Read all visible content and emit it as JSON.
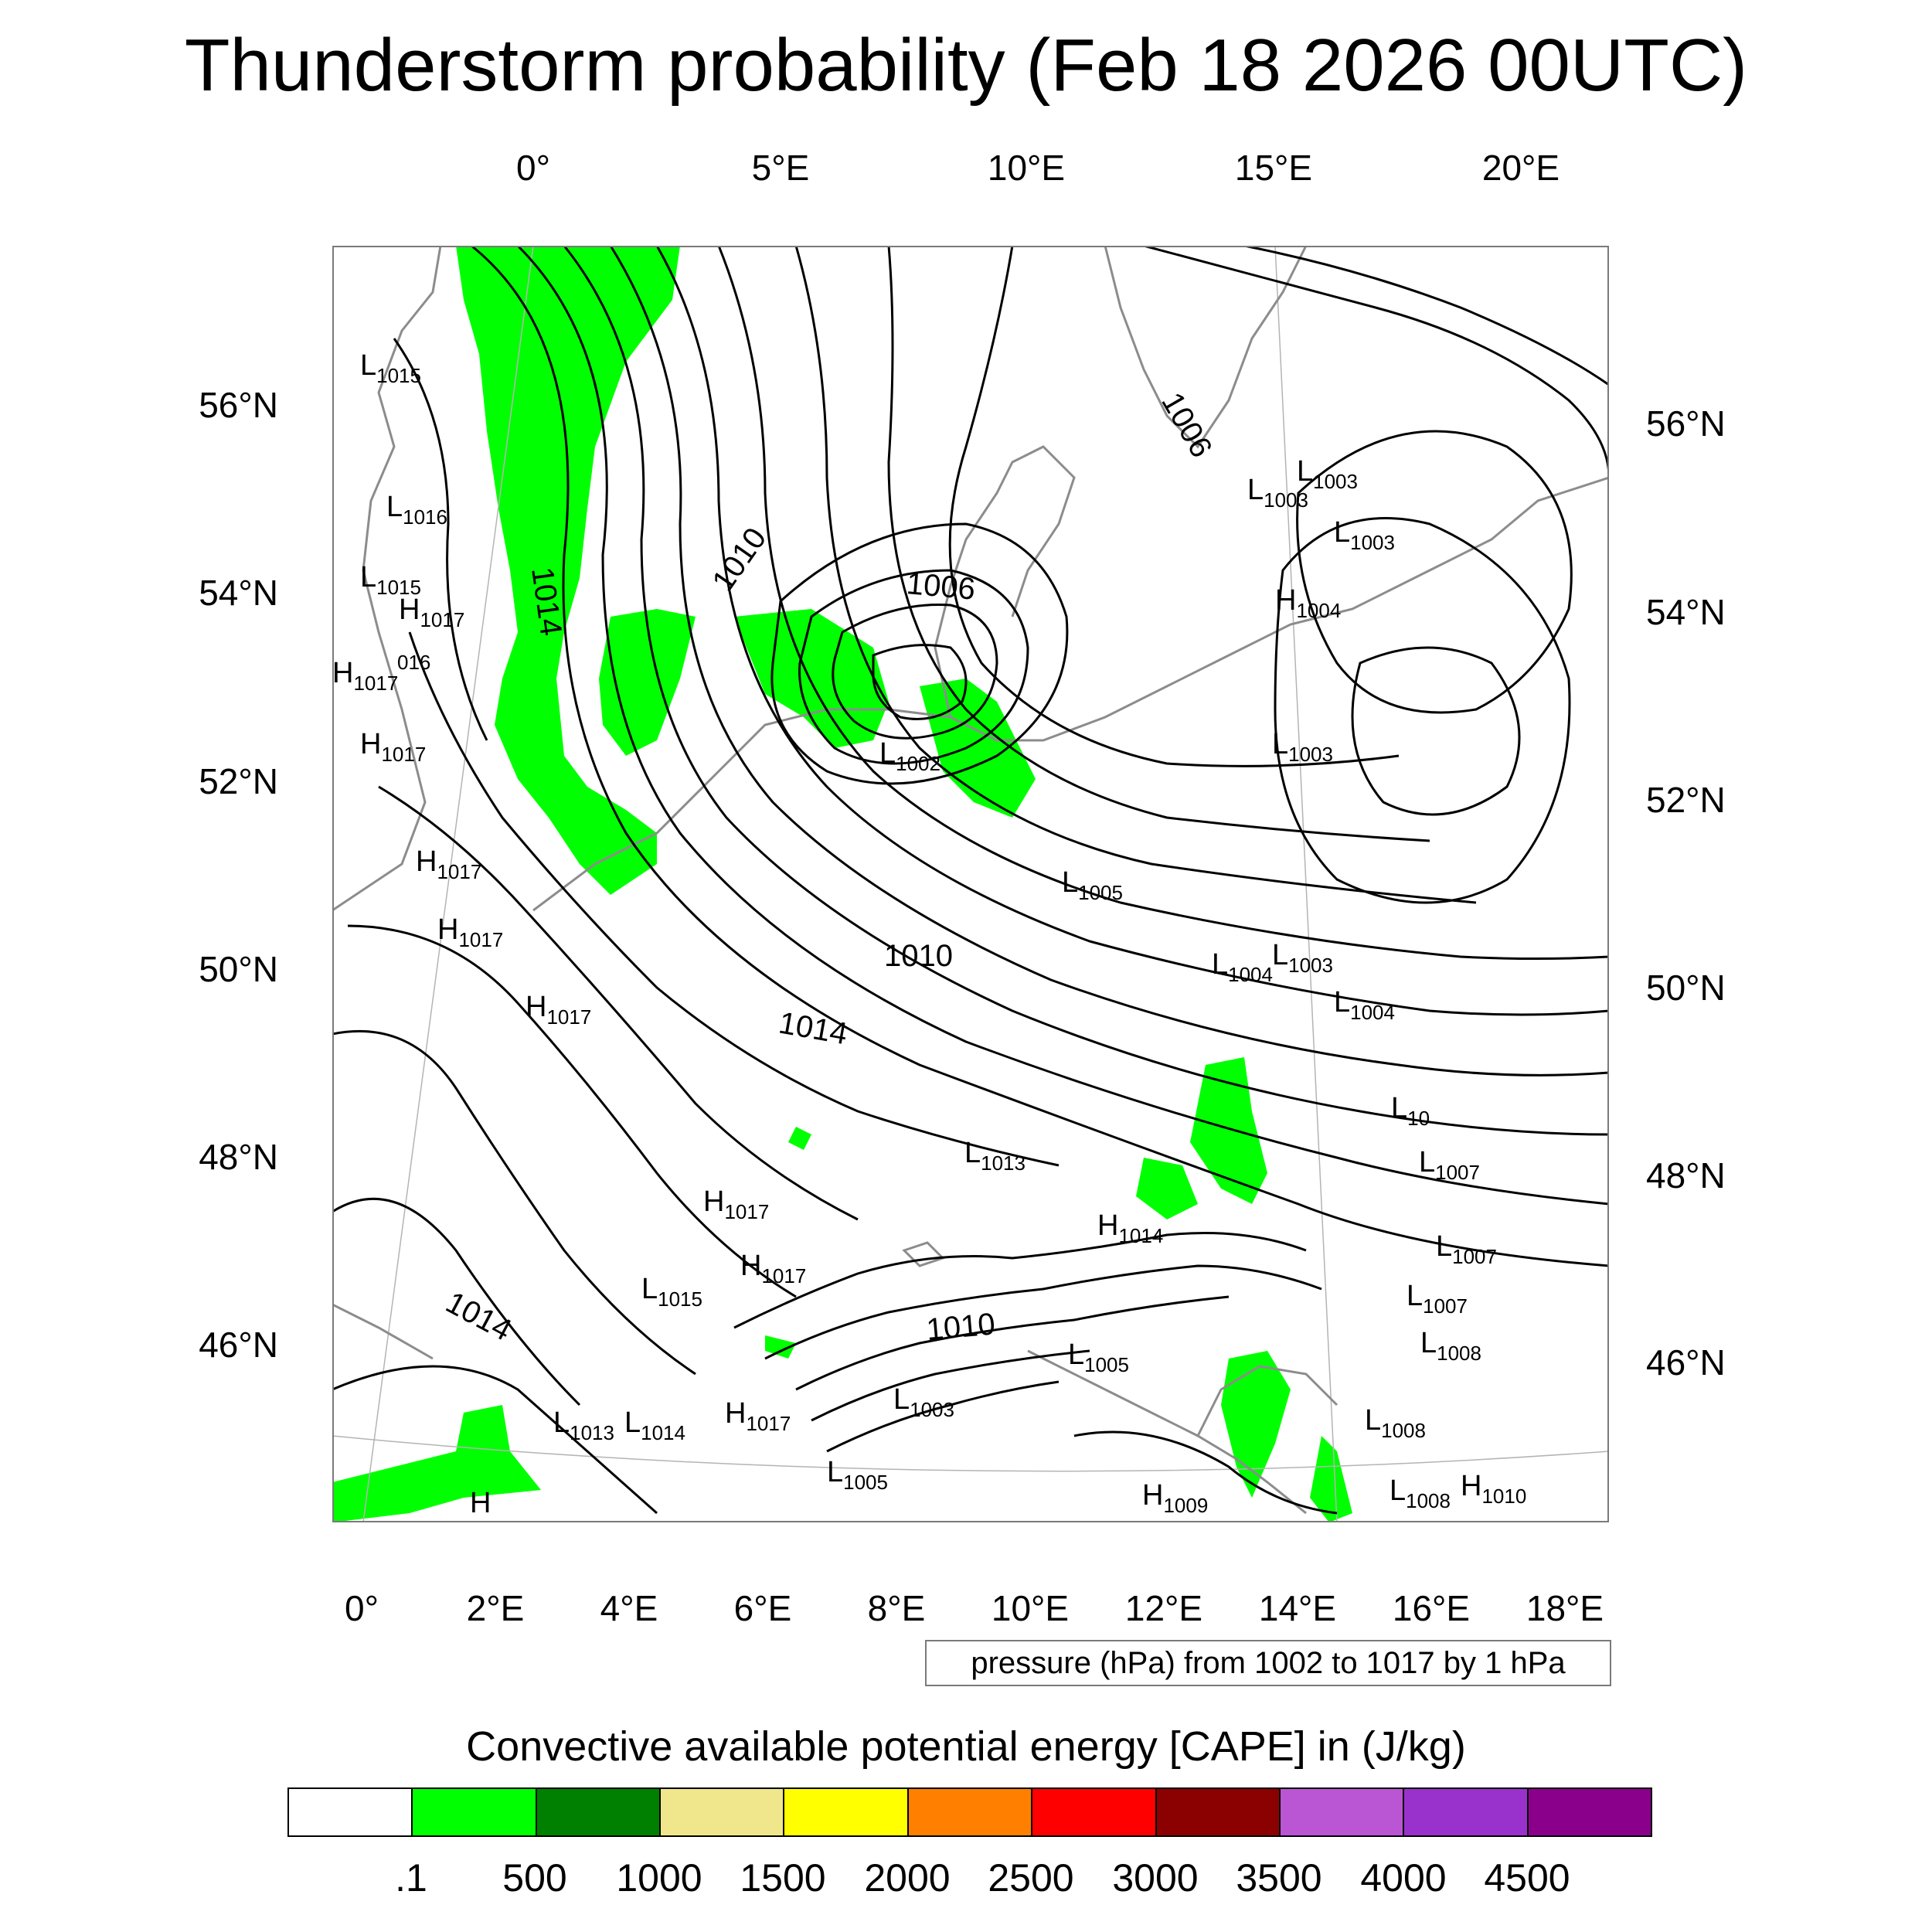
{
  "title": "Thunderstorm probability (Feb 18 2026 00UTC)",
  "map": {
    "top_lon_labels": [
      "0°",
      "5°E",
      "10°E",
      "15°E",
      "20°E"
    ],
    "bottom_lon_labels": [
      "0°",
      "2°E",
      "4°E",
      "6°E",
      "8°E",
      "10°E",
      "12°E",
      "14°E",
      "16°E",
      "18°E"
    ],
    "left_lat_labels": [
      "56°N",
      "54°N",
      "52°N",
      "50°N",
      "48°N",
      "46°N"
    ],
    "right_lat_labels": [
      "56°N",
      "54°N",
      "52°N",
      "50°N",
      "48°N",
      "46°N"
    ],
    "contour_labels": [
      "1014",
      "1010",
      "1006",
      "1006",
      "1010",
      "1014",
      "1010",
      "1014"
    ],
    "pressure_centers": [
      {
        "type": "L",
        "value": "1015"
      },
      {
        "type": "L",
        "value": "1016"
      },
      {
        "type": "L",
        "value": "1015"
      },
      {
        "type": "H",
        "value": "1017"
      },
      {
        "type": "H",
        "value": "1017"
      },
      {
        "type": "H",
        "value": "1017"
      },
      {
        "type": "H",
        "value": "1017"
      },
      {
        "type": "H",
        "value": "1017"
      },
      {
        "type": "H",
        "value": "1017"
      },
      {
        "type": "L",
        "value": "1002"
      },
      {
        "type": "L",
        "value": "1003"
      },
      {
        "type": "L",
        "value": "1003"
      },
      {
        "type": "L",
        "value": "1003"
      },
      {
        "type": "H",
        "value": "1004"
      },
      {
        "type": "L",
        "value": "1003"
      },
      {
        "type": "L",
        "value": "1005"
      },
      {
        "type": "L",
        "value": "1004"
      },
      {
        "type": "L",
        "value": "1003"
      },
      {
        "type": "L",
        "value": "1004"
      },
      {
        "type": "L",
        "value": "10"
      },
      {
        "type": "H",
        "value": "1017"
      },
      {
        "type": "L",
        "value": "1013"
      },
      {
        "type": "L",
        "value": "1007"
      },
      {
        "type": "H",
        "value": "1014"
      },
      {
        "type": "L",
        "value": "1007"
      },
      {
        "type": "L",
        "value": "1015"
      },
      {
        "type": "H",
        "value": "1017"
      },
      {
        "type": "L",
        "value": "1007"
      },
      {
        "type": "L",
        "value": "1005"
      },
      {
        "type": "L",
        "value": "1008"
      },
      {
        "type": "L",
        "value": "1013"
      },
      {
        "type": "L",
        "value": "1014"
      },
      {
        "type": "H",
        "value": "1017"
      },
      {
        "type": "L",
        "value": "1003"
      },
      {
        "type": "L",
        "value": "1005"
      },
      {
        "type": "L",
        "value": "1008"
      },
      {
        "type": "H",
        "value": "1010"
      },
      {
        "type": "L",
        "value": "1008"
      },
      {
        "type": "H",
        "value": "1009"
      },
      {
        "type": "H",
        "value": ""
      }
    ],
    "truncated_label": "016",
    "colors": {
      "cape_fill": "#00ff00",
      "contour": "#000000",
      "coastline": "#8c8c8c",
      "gridline": "#b4b4b4"
    }
  },
  "pressure_note": "pressure (hPa) from 1002 to 1017 by 1 hPa",
  "colorbar": {
    "title": "Convective available potential energy [CAPE] in (J/kg)",
    "colors": [
      "#ffffff",
      "#00ff00",
      "#008000",
      "#f0e68c",
      "#ffff00",
      "#ff8000",
      "#ff0000",
      "#8b0000",
      "#ba55d3",
      "#9932cc",
      "#8b008b"
    ],
    "labels": [
      ".1",
      "500",
      "1000",
      "1500",
      "2000",
      "2500",
      "3000",
      "3500",
      "4000",
      "4500"
    ]
  }
}
